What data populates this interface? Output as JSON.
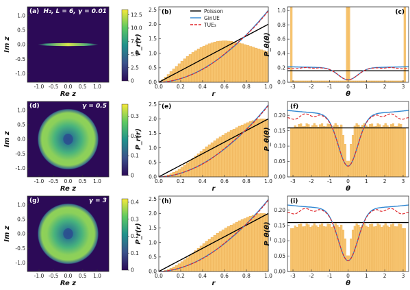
{
  "colors": {
    "heat_low": "#2c0a57",
    "heat_high": "#f6e93a",
    "bar_fill": "#f7c46f",
    "bar_edge": "#e8a94a",
    "poisson": "#000000",
    "ginue": "#2f86d1",
    "tue3": "#e0262a"
  },
  "chart_data": [
    {
      "id": "a",
      "type": "heatmap",
      "label": "(a)",
      "annotation": "H₂, L = 6, γ = 0.01",
      "xlabel": "Re z",
      "ylabel": "Im z",
      "xlim": [
        -1.4,
        1.4
      ],
      "ylim": [
        -1.3,
        1.3
      ],
      "xticks": [
        "-1.0",
        "-0.5",
        "0.0",
        "0.5",
        "1.0"
      ],
      "yticks": [
        "-1.0",
        "-0.5",
        "0.0",
        "0.5",
        "1.0"
      ],
      "colorbar": {
        "ticks": [
          "0",
          "2.5",
          "5.0",
          "7.5",
          "10.0",
          "12.5"
        ],
        "vmax": 13.5
      },
      "feature": "density concentrated on the real axis from -1 to 1"
    },
    {
      "id": "b",
      "type": "bar",
      "label": "(b)",
      "xlabel": "r",
      "ylabel": "P_r(r)",
      "xlim": [
        0,
        1
      ],
      "ylim": [
        0,
        2.6
      ],
      "xticks": [
        "0.0",
        "0.2",
        "0.4",
        "0.6",
        "0.8",
        "1.0"
      ],
      "yticks": [
        "0.0",
        "0.5",
        "1.0",
        "1.5",
        "2.0",
        "2.5"
      ],
      "legend": [
        "Poisson",
        "GinUE",
        "TUE₃"
      ],
      "legend_position": "top-left",
      "hist": [
        0.04,
        0.1,
        0.18,
        0.27,
        0.37,
        0.46,
        0.55,
        0.64,
        0.73,
        0.81,
        0.89,
        0.96,
        1.03,
        1.09,
        1.15,
        1.2,
        1.25,
        1.29,
        1.33,
        1.36,
        1.39,
        1.41,
        1.42,
        1.43,
        1.43,
        1.42,
        1.41,
        1.39,
        1.37,
        1.35,
        1.33,
        1.3,
        1.27,
        1.24,
        1.21,
        1.18,
        1.15,
        1.12,
        1.09,
        1.06
      ]
    },
    {
      "id": "c",
      "type": "bar",
      "label": "(c)",
      "xlabel": "θ",
      "ylabel": "P_θ(θ)",
      "xlim": [
        -3.3,
        3.3
      ],
      "ylim": [
        0,
        1.05
      ],
      "xticks": [
        "-3",
        "-2",
        "-1",
        "0",
        "1",
        "2",
        "3"
      ],
      "yticks": [
        "0.0",
        "0.2",
        "0.4",
        "0.6",
        "0.8",
        "1.0"
      ],
      "spikes_at": [
        -3.14,
        0,
        3.14
      ],
      "hist_level": 0.02,
      "poisson_level": 0.159
    },
    {
      "id": "d",
      "type": "heatmap",
      "label": "(d)",
      "annotation": "γ = 0.5",
      "xlabel": "Re z",
      "ylabel": "Im z",
      "xlim": [
        -1.4,
        1.4
      ],
      "ylim": [
        -1.3,
        1.3
      ],
      "xticks": [
        "-1.0",
        "-0.5",
        "0.0",
        "0.5",
        "1.0"
      ],
      "yticks": [
        "-1.0",
        "-0.5",
        "0.0",
        "0.5",
        "1.0"
      ],
      "colorbar": {
        "ticks": [
          "0",
          "0.1",
          "0.2",
          "0.3"
        ],
        "vmax": 0.36
      },
      "feature": "ring-shaped density with a depleted center"
    },
    {
      "id": "e",
      "type": "bar",
      "label": "(e)",
      "xlabel": "r",
      "ylabel": "P_r(r)",
      "xlim": [
        0,
        1
      ],
      "ylim": [
        0,
        2.6
      ],
      "xticks": [
        "0.0",
        "0.2",
        "0.4",
        "0.6",
        "0.8",
        "1.0"
      ],
      "yticks": [
        "0.0",
        "0.5",
        "1.0",
        "1.5",
        "2.0",
        "2.5"
      ],
      "hist": [
        0.01,
        0.02,
        0.04,
        0.07,
        0.11,
        0.16,
        0.21,
        0.27,
        0.34,
        0.41,
        0.48,
        0.56,
        0.64,
        0.72,
        0.8,
        0.88,
        0.96,
        1.04,
        1.11,
        1.18,
        1.25,
        1.32,
        1.38,
        1.44,
        1.5,
        1.55,
        1.6,
        1.65,
        1.7,
        1.75,
        1.79,
        1.83,
        1.87,
        1.91,
        1.94,
        1.97,
        1.99,
        2.0,
        2.0,
        1.98
      ]
    },
    {
      "id": "f",
      "type": "bar",
      "label": "(f)",
      "xlabel": "θ",
      "ylabel": "P_θ(θ)",
      "xlim": [
        -3.3,
        3.3
      ],
      "ylim": [
        0,
        0.245
      ],
      "xticks": [
        "-3",
        "-2",
        "-1",
        "0",
        "1",
        "2",
        "3"
      ],
      "yticks": [
        "0.00",
        "0.05",
        "0.10",
        "0.15",
        "0.20"
      ],
      "poisson_level": 0.159
    },
    {
      "id": "g",
      "type": "heatmap",
      "label": "(g)",
      "annotation": "γ = 3",
      "xlabel": "Re z",
      "ylabel": "Im z",
      "xlim": [
        -1.4,
        1.4
      ],
      "ylim": [
        -1.3,
        1.3
      ],
      "xticks": [
        "-1.0",
        "-0.5",
        "0.0",
        "0.5",
        "1.0"
      ],
      "yticks": [
        "-1.0",
        "-0.5",
        "0.0",
        "0.5",
        "1.0"
      ],
      "colorbar": {
        "ticks": [
          "0",
          "0.1",
          "0.2",
          "0.3",
          "0.4"
        ],
        "vmax": 0.42
      },
      "feature": "ring-shaped density with a depleted center"
    },
    {
      "id": "h",
      "type": "bar",
      "label": "(h)",
      "xlabel": "r",
      "ylabel": "P_r(r)",
      "xlim": [
        0,
        1
      ],
      "ylim": [
        0,
        2.6
      ],
      "xticks": [
        "0.0",
        "0.2",
        "0.4",
        "0.6",
        "0.8",
        "1.0"
      ],
      "yticks": [
        "0.0",
        "0.5",
        "1.0",
        "1.5",
        "2.0",
        "2.5"
      ],
      "hist": [
        0.01,
        0.02,
        0.04,
        0.07,
        0.11,
        0.16,
        0.21,
        0.27,
        0.34,
        0.41,
        0.48,
        0.56,
        0.64,
        0.72,
        0.8,
        0.88,
        0.96,
        1.04,
        1.11,
        1.18,
        1.25,
        1.32,
        1.38,
        1.44,
        1.5,
        1.55,
        1.6,
        1.65,
        1.7,
        1.75,
        1.79,
        1.83,
        1.87,
        1.91,
        1.94,
        1.97,
        1.99,
        2.0,
        2.0,
        1.98
      ]
    },
    {
      "id": "i",
      "type": "bar",
      "label": "(i)",
      "xlabel": "θ",
      "ylabel": "P_θ(θ)",
      "xlim": [
        -3.3,
        3.3
      ],
      "ylim": [
        0,
        0.245
      ],
      "xticks": [
        "-3",
        "-2",
        "-1",
        "0",
        "1",
        "2",
        "3"
      ],
      "yticks": [
        "0.00",
        "0.05",
        "0.10",
        "0.15",
        "0.20"
      ],
      "poisson_level": 0.159
    }
  ]
}
